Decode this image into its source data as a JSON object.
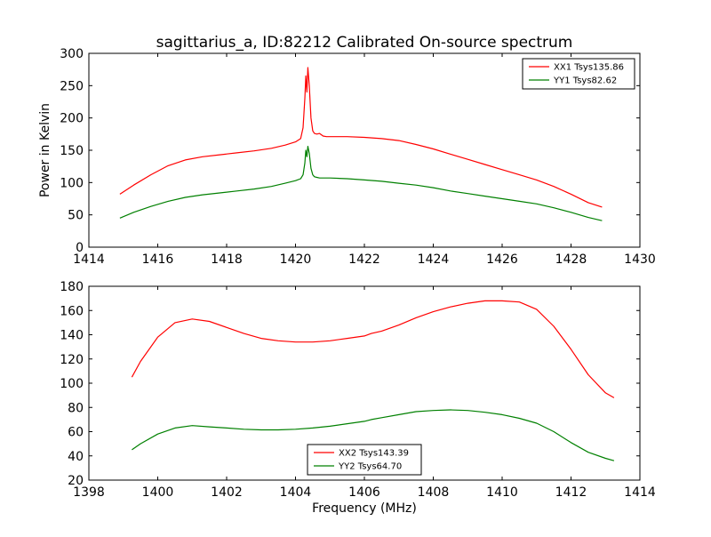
{
  "title": "sagittarius_a, ID:82212 Calibrated On-source spectrum",
  "ylabel_top": "Power in Kelvin",
  "xlabel_bottom": "Frequency (MHz)",
  "colors": {
    "xx": "#ff0000",
    "yy": "#008000"
  },
  "chart_data": [
    {
      "type": "line",
      "title": "sagittarius_a, ID:82212 Calibrated On-source spectrum",
      "xlabel": "",
      "ylabel": "Power in Kelvin",
      "xlim": [
        1414,
        1430
      ],
      "ylim": [
        0,
        300
      ],
      "xticks": [
        1414,
        1416,
        1418,
        1420,
        1422,
        1424,
        1426,
        1428,
        1430
      ],
      "yticks": [
        0,
        50,
        100,
        150,
        200,
        250,
        300
      ],
      "legend_position": "top-right",
      "series": [
        {
          "name": "XX1 Tsys135.86",
          "color": "#ff0000",
          "x": [
            1414.9,
            1415.3,
            1415.8,
            1416.3,
            1416.8,
            1417.3,
            1417.8,
            1418.3,
            1418.8,
            1419.3,
            1419.7,
            1420.0,
            1420.15,
            1420.22,
            1420.27,
            1420.3,
            1420.33,
            1420.36,
            1420.4,
            1420.45,
            1420.5,
            1420.55,
            1420.62,
            1420.7,
            1420.8,
            1420.9,
            1421.0,
            1421.5,
            1422.0,
            1422.5,
            1423.0,
            1423.5,
            1424.0,
            1424.5,
            1425.0,
            1425.5,
            1426.0,
            1426.5,
            1427.0,
            1427.5,
            1428.0,
            1428.5,
            1428.9
          ],
          "y": [
            82,
            96,
            112,
            126,
            135,
            140,
            143,
            146,
            149,
            153,
            158,
            163,
            168,
            185,
            230,
            265,
            240,
            278,
            250,
            200,
            180,
            176,
            175,
            176,
            172,
            171,
            171,
            171,
            170,
            168,
            165,
            159,
            152,
            144,
            136,
            128,
            120,
            112,
            104,
            94,
            82,
            69,
            62
          ]
        },
        {
          "name": "YY1 Tsys82.62",
          "color": "#008000",
          "x": [
            1414.9,
            1415.3,
            1415.8,
            1416.3,
            1416.8,
            1417.3,
            1417.8,
            1418.3,
            1418.8,
            1419.3,
            1419.7,
            1420.0,
            1420.15,
            1420.22,
            1420.27,
            1420.3,
            1420.33,
            1420.36,
            1420.4,
            1420.45,
            1420.5,
            1420.55,
            1420.62,
            1420.7,
            1420.8,
            1420.9,
            1421.0,
            1421.5,
            1422.0,
            1422.5,
            1423.0,
            1423.5,
            1424.0,
            1424.5,
            1425.0,
            1425.5,
            1426.0,
            1426.5,
            1427.0,
            1427.5,
            1428.0,
            1428.5,
            1428.9
          ],
          "y": [
            45,
            54,
            63,
            71,
            77,
            81,
            84,
            87,
            90,
            94,
            99,
            103,
            106,
            112,
            130,
            150,
            140,
            156,
            145,
            122,
            112,
            109,
            108,
            107,
            107,
            107,
            107,
            106,
            104,
            102,
            99,
            96,
            92,
            87,
            83,
            79,
            75,
            71,
            67,
            61,
            54,
            46,
            41
          ]
        }
      ]
    },
    {
      "type": "line",
      "title": "",
      "xlabel": "Frequency (MHz)",
      "ylabel": "",
      "xlim": [
        1398,
        1414
      ],
      "ylim": [
        20,
        180
      ],
      "xticks": [
        1398,
        1400,
        1402,
        1404,
        1406,
        1408,
        1410,
        1412,
        1414
      ],
      "yticks": [
        20,
        40,
        60,
        80,
        100,
        120,
        140,
        160,
        180
      ],
      "legend_position": "bottom-center",
      "series": [
        {
          "name": "XX2 Tsys143.39",
          "color": "#ff0000",
          "x": [
            1399.25,
            1399.5,
            1400.0,
            1400.5,
            1401.0,
            1401.5,
            1402.0,
            1402.5,
            1403.0,
            1403.5,
            1404.0,
            1404.5,
            1405.0,
            1405.5,
            1406.0,
            1406.2,
            1406.5,
            1407.0,
            1407.5,
            1408.0,
            1408.5,
            1409.0,
            1409.5,
            1410.0,
            1410.5,
            1411.0,
            1411.5,
            1412.0,
            1412.5,
            1413.0,
            1413.25
          ],
          "y": [
            105,
            118,
            138,
            150,
            153,
            151,
            146,
            141,
            137,
            135,
            134,
            134,
            135,
            137,
            139,
            141,
            143,
            148,
            154,
            159,
            163,
            166,
            168,
            168,
            167,
            161,
            147,
            128,
            107,
            92,
            88
          ]
        },
        {
          "name": "YY2 Tsys64.70",
          "color": "#008000",
          "x": [
            1399.25,
            1399.5,
            1400.0,
            1400.5,
            1401.0,
            1401.5,
            1402.0,
            1402.5,
            1403.0,
            1403.5,
            1404.0,
            1404.5,
            1405.0,
            1405.5,
            1406.0,
            1406.2,
            1406.5,
            1407.0,
            1407.5,
            1408.0,
            1408.5,
            1409.0,
            1409.5,
            1410.0,
            1410.5,
            1411.0,
            1411.5,
            1412.0,
            1412.5,
            1413.0,
            1413.25
          ],
          "y": [
            45,
            50,
            58,
            63,
            65,
            64,
            63,
            62,
            61.5,
            61.5,
            62,
            63,
            64.5,
            66.5,
            68.5,
            70,
            71.5,
            74,
            76.5,
            77.5,
            78,
            77.5,
            76,
            74,
            71,
            67,
            60,
            51,
            43,
            38,
            36
          ]
        }
      ]
    }
  ]
}
